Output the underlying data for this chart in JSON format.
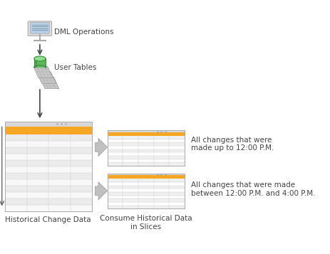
{
  "bg_color": "#ffffff",
  "text_color": "#444444",
  "orange_color": "#F5A623",
  "table_line_color": "#cccccc",
  "dml_icon_text": "DML Operations",
  "user_tables_text": "User Tables",
  "hist_change_text": "Historical Change Data",
  "consume_text": "Consume Historical Data\nin Slices",
  "slice1_text": "All changes that were\nmade up to 12:00 P.M.",
  "slice2_text": "All changes that were made\nbetween 12:00 P.M. and 4:00 P.M.",
  "font_size_label": 7.5
}
